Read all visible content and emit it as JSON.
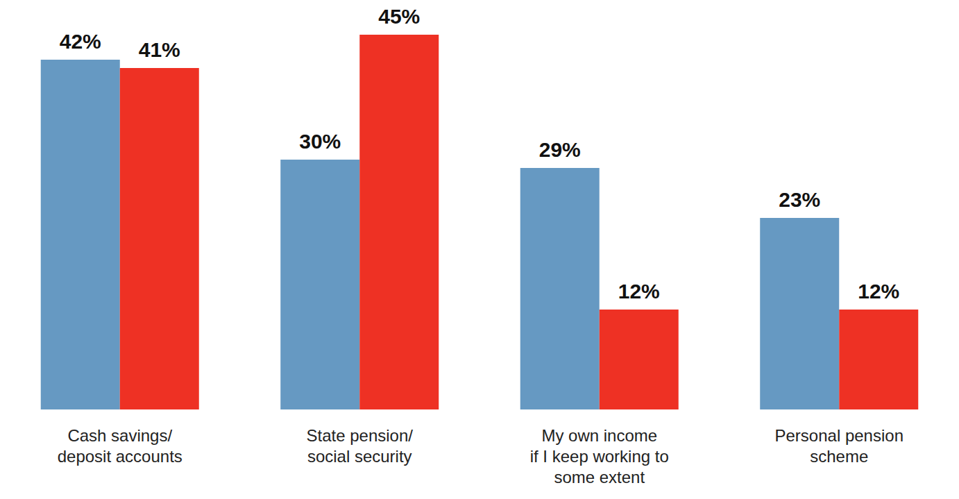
{
  "chart_data": {
    "type": "bar",
    "categories": [
      "Cash savings/\ndeposit accounts",
      "State pension/\nsocial security",
      "My own income\nif I keep working to\nsome extent",
      "Personal pension\nscheme"
    ],
    "series": [
      {
        "color": "#6699c2",
        "values": [
          42,
          30,
          29,
          23
        ],
        "value_labels": [
          "42%",
          "30%",
          "29%",
          "23%"
        ]
      },
      {
        "color": "#ee3124",
        "values": [
          41,
          45,
          12,
          12
        ],
        "value_labels": [
          "41%",
          "45%",
          "12%",
          "12%"
        ]
      }
    ],
    "ylim": [
      0,
      45
    ],
    "grid": false,
    "data_labels": true,
    "tick_labels": "x"
  }
}
